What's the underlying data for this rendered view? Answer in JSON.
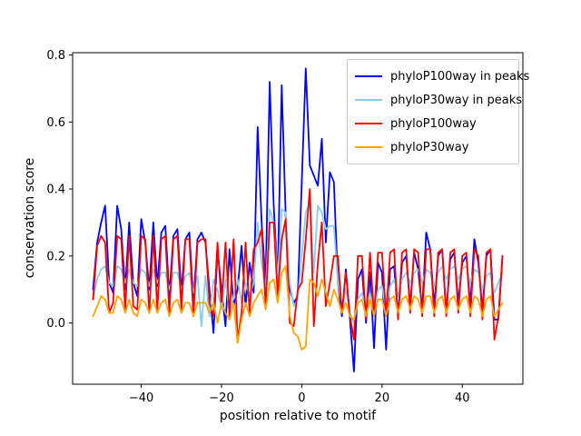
{
  "figure": {
    "background": "#ffffff"
  },
  "chart_data": {
    "type": "line",
    "title": "",
    "xlabel": "position relative to motif",
    "ylabel": "conservation score",
    "xlim": [
      -57.1,
      55.1
    ],
    "ylim": [
      -0.183,
      0.807
    ],
    "xticks": [
      -40,
      -20,
      0,
      20,
      40
    ],
    "xtick_labels": [
      "−40",
      "−20",
      "0",
      "20",
      "40"
    ],
    "yticks": [
      0.0,
      0.2,
      0.4,
      0.6,
      0.8
    ],
    "ytick_labels": [
      "0.0",
      "0.2",
      "0.4",
      "0.6",
      "0.8"
    ],
    "grid": false,
    "legend_position": "upper right",
    "axis_color": "#000000",
    "x": [
      -52,
      -51,
      -50,
      -49,
      -48,
      -47,
      -46,
      -45,
      -44,
      -43,
      -42,
      -41,
      -40,
      -39,
      -38,
      -37,
      -36,
      -35,
      -34,
      -33,
      -32,
      -31,
      -30,
      -29,
      -28,
      -27,
      -26,
      -25,
      -24,
      -23,
      -22,
      -21,
      -20,
      -19,
      -18,
      -17,
      -16,
      -15,
      -14,
      -13,
      -12,
      -11,
      -10,
      -9,
      -8,
      -7,
      -6,
      -5,
      -4,
      -3,
      -2,
      -1,
      0,
      1,
      2,
      3,
      4,
      5,
      6,
      7,
      8,
      9,
      10,
      11,
      12,
      13,
      14,
      15,
      16,
      17,
      18,
      19,
      20,
      21,
      22,
      23,
      24,
      25,
      26,
      27,
      28,
      29,
      30,
      31,
      32,
      33,
      34,
      35,
      36,
      37,
      38,
      39,
      40,
      41,
      42,
      43,
      44,
      45,
      46,
      47,
      48,
      49,
      50
    ],
    "series": [
      {
        "name": "phyloP100way in peaks",
        "color": "#0000ff",
        "values": [
          0.1,
          0.24,
          0.3,
          0.35,
          0.12,
          0.09,
          0.35,
          0.28,
          0.1,
          0.3,
          0.12,
          0.08,
          0.31,
          0.24,
          0.1,
          0.3,
          0.11,
          0.27,
          0.29,
          0.08,
          0.26,
          0.28,
          0.09,
          0.25,
          0.27,
          0.06,
          0.25,
          0.27,
          0.24,
          0.1,
          -0.03,
          0.22,
          0.1,
          -0.01,
          0.22,
          0.05,
          0.1,
          0.23,
          0.05,
          0.18,
          0.09,
          0.585,
          0.3,
          0.12,
          0.72,
          0.35,
          0.13,
          0.71,
          0.32,
          0.1,
          0.06,
          0.08,
          0.42,
          0.76,
          0.47,
          0.44,
          0.41,
          0.55,
          0.24,
          0.45,
          0.42,
          0.12,
          0.02,
          0.16,
          0.01,
          -0.145,
          0.13,
          0.16,
          0.0,
          0.15,
          -0.075,
          0.18,
          0.15,
          -0.08,
          0.16,
          0.17,
          0.02,
          0.18,
          0.2,
          0.05,
          0.21,
          0.16,
          0.04,
          0.27,
          0.22,
          0.05,
          0.2,
          0.22,
          0.03,
          0.19,
          0.21,
          0.06,
          0.18,
          0.2,
          0.05,
          0.25,
          0.18,
          0.04,
          0.2,
          0.22,
          0.01,
          0.01,
          0.2
        ]
      },
      {
        "name": "phyloP30way in peaks",
        "color": "#87ceeb",
        "values": [
          0.07,
          0.13,
          0.16,
          0.17,
          0.12,
          0.11,
          0.17,
          0.16,
          0.12,
          0.16,
          0.12,
          0.11,
          0.16,
          0.15,
          0.11,
          0.16,
          0.12,
          0.15,
          0.15,
          0.1,
          0.15,
          0.15,
          0.1,
          0.14,
          0.15,
          0.09,
          0.14,
          -0.01,
          0.14,
          0.02,
          0.13,
          0.1,
          0.04,
          0.13,
          0.03,
          0.08,
          0.13,
          0.06,
          0.12,
          0.08,
          0.12,
          0.3,
          0.18,
          0.1,
          0.34,
          0.3,
          0.13,
          0.34,
          0.33,
          0.12,
          0.05,
          0.07,
          0.2,
          0.33,
          0.36,
          0.15,
          0.35,
          0.33,
          0.28,
          0.29,
          0.29,
          0.12,
          0.05,
          0.1,
          0.03,
          0.0,
          0.07,
          0.09,
          0.04,
          0.09,
          0.03,
          0.1,
          0.11,
          0.04,
          0.11,
          0.13,
          0.08,
          0.13,
          0.15,
          0.12,
          0.15,
          0.16,
          0.12,
          0.16,
          0.15,
          0.11,
          0.15,
          0.17,
          0.13,
          0.16,
          0.17,
          0.13,
          0.16,
          0.17,
          0.12,
          0.16,
          0.15,
          0.1,
          0.14,
          0.15,
          0.09,
          0.12,
          0.15
        ]
      },
      {
        "name": "phyloP100way",
        "color": "#ff0000",
        "values": [
          0.07,
          0.23,
          0.26,
          0.24,
          0.03,
          0.06,
          0.26,
          0.25,
          0.04,
          0.26,
          0.05,
          0.04,
          0.26,
          0.25,
          0.03,
          0.26,
          0.04,
          0.25,
          0.26,
          0.03,
          0.25,
          0.26,
          0.04,
          0.25,
          0.25,
          0.02,
          0.24,
          0.25,
          0.25,
          0.06,
          0.02,
          0.24,
          0.05,
          0.24,
          0.02,
          0.25,
          -0.05,
          0.03,
          0.24,
          0.03,
          0.22,
          0.24,
          0.28,
          0.05,
          0.3,
          0.3,
          0.08,
          0.25,
          0.31,
          0.0,
          -0.01,
          0.1,
          0.12,
          0.25,
          0.4,
          -0.01,
          0.18,
          0.3,
          0.05,
          0.12,
          0.2,
          0.2,
          0.03,
          0.15,
          0.02,
          -0.05,
          0.2,
          0.2,
          0.01,
          0.21,
          0.02,
          0.21,
          0.21,
          0.02,
          0.21,
          0.22,
          0.01,
          0.21,
          0.22,
          0.03,
          0.22,
          0.21,
          0.02,
          0.22,
          0.22,
          0.02,
          0.21,
          0.22,
          0.02,
          0.21,
          0.22,
          0.03,
          0.2,
          0.21,
          0.02,
          0.22,
          0.2,
          0.01,
          0.21,
          0.22,
          -0.05,
          0.02,
          0.2
        ]
      },
      {
        "name": "phyloP30way",
        "color": "#ffa500",
        "values": [
          0.02,
          0.05,
          0.08,
          0.07,
          0.03,
          0.03,
          0.08,
          0.07,
          0.03,
          0.07,
          0.03,
          0.02,
          0.07,
          0.06,
          0.03,
          0.07,
          0.03,
          0.06,
          0.07,
          0.02,
          0.06,
          0.07,
          0.03,
          0.06,
          0.06,
          0.02,
          0.06,
          0.06,
          0.06,
          0.03,
          0.06,
          0.0,
          0.06,
          0.03,
          0.01,
          0.06,
          -0.06,
          0.01,
          0.06,
          0.02,
          0.06,
          0.08,
          0.1,
          0.04,
          0.12,
          0.13,
          0.06,
          0.15,
          0.17,
          0.02,
          -0.03,
          -0.04,
          -0.08,
          -0.07,
          0.13,
          0.12,
          0.08,
          0.13,
          0.09,
          0.05,
          0.1,
          0.07,
          0.03,
          0.06,
          0.02,
          0.01,
          0.06,
          0.07,
          0.02,
          0.07,
          0.02,
          0.07,
          0.07,
          0.02,
          0.07,
          0.08,
          0.03,
          0.07,
          0.08,
          0.04,
          0.08,
          0.07,
          0.03,
          0.08,
          0.08,
          0.03,
          0.07,
          0.08,
          0.03,
          0.07,
          0.08,
          0.04,
          0.07,
          0.08,
          0.03,
          0.08,
          0.07,
          0.02,
          0.07,
          0.08,
          0.02,
          0.04,
          0.06
        ]
      }
    ]
  }
}
